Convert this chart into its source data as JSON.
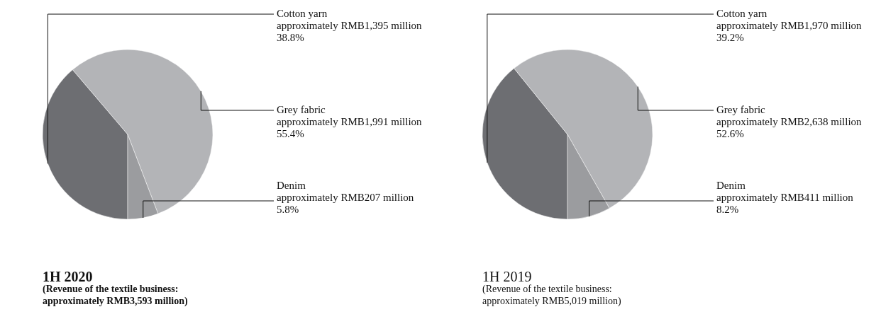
{
  "chart_data": [
    {
      "type": "pie",
      "title": "1H 2020",
      "subtitle": "(Revenue of the textile business: approximately RMB3,593 million)",
      "categories": [
        "Cotton yarn",
        "Grey fabric",
        "Denim"
      ],
      "values": [
        38.8,
        55.4,
        5.8
      ],
      "colors": [
        "#6d6e72",
        "#b3b4b7",
        "#9b9c9f"
      ],
      "value_labels": [
        "38.8%",
        "55.4%",
        "5.8%"
      ],
      "annotations": [
        {
          "text": "approximately RMB1,395 million",
          "x": "Cotton yarn"
        },
        {
          "text": "approximately RMB1,991 million",
          "x": "Grey fabric"
        },
        {
          "text": "approximately RMB207 million",
          "x": "Denim"
        }
      ]
    },
    {
      "type": "pie",
      "title": "1H 2019",
      "subtitle": "(Revenue of the textile business: approximately RMB5,019 million)",
      "categories": [
        "Cotton yarn",
        "Grey fabric",
        "Denim"
      ],
      "values": [
        39.2,
        52.6,
        8.2
      ],
      "colors": [
        "#6d6e72",
        "#b3b4b7",
        "#9b9c9f"
      ],
      "value_labels": [
        "39.2%",
        "52.6%",
        "8.2%"
      ],
      "annotations": [
        {
          "text": "approximately RMB1,970 million",
          "x": "Cotton yarn"
        },
        {
          "text": "approximately RMB2,638 million",
          "x": "Grey fabric"
        },
        {
          "text": "approximately RMB411 million",
          "x": "Denim"
        }
      ]
    }
  ]
}
